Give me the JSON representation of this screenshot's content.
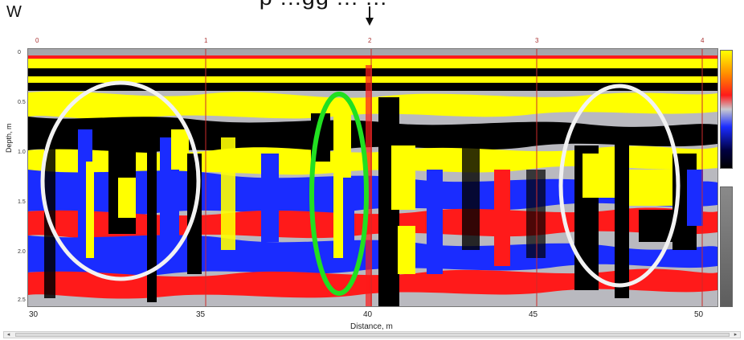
{
  "labels": {
    "west": "W",
    "x_axis": "Distance, m",
    "y_axis": "Depth, m",
    "top_cut_text": "p ...gg ... ..."
  },
  "x_ticks": [
    "30",
    "35",
    "40",
    "45",
    "50"
  ],
  "y_ticks": [
    "0",
    "0.5",
    "1.0",
    "1.5",
    "2.0",
    "2.5"
  ],
  "top_axis_ticks": [
    "0",
    "1",
    "2",
    "3",
    "4"
  ],
  "colors": {
    "black": "#000000",
    "yellow": "#ffff00",
    "red": "#ff1a1a",
    "blue": "#1a2cff",
    "grey": "#b9b9bf",
    "white_ellipse": "#f2f2f2",
    "green_ellipse": "#21e021"
  },
  "annotations": [
    {
      "type": "ellipse",
      "color": "white",
      "name": "left-anomaly-ellipse"
    },
    {
      "type": "ellipse",
      "color": "green",
      "name": "center-anomaly-ellipse"
    },
    {
      "type": "ellipse",
      "color": "white",
      "name": "right-anomaly-ellipse"
    }
  ],
  "scrollbar": {
    "left_arrow": "◂",
    "right_arrow": "▸"
  }
}
